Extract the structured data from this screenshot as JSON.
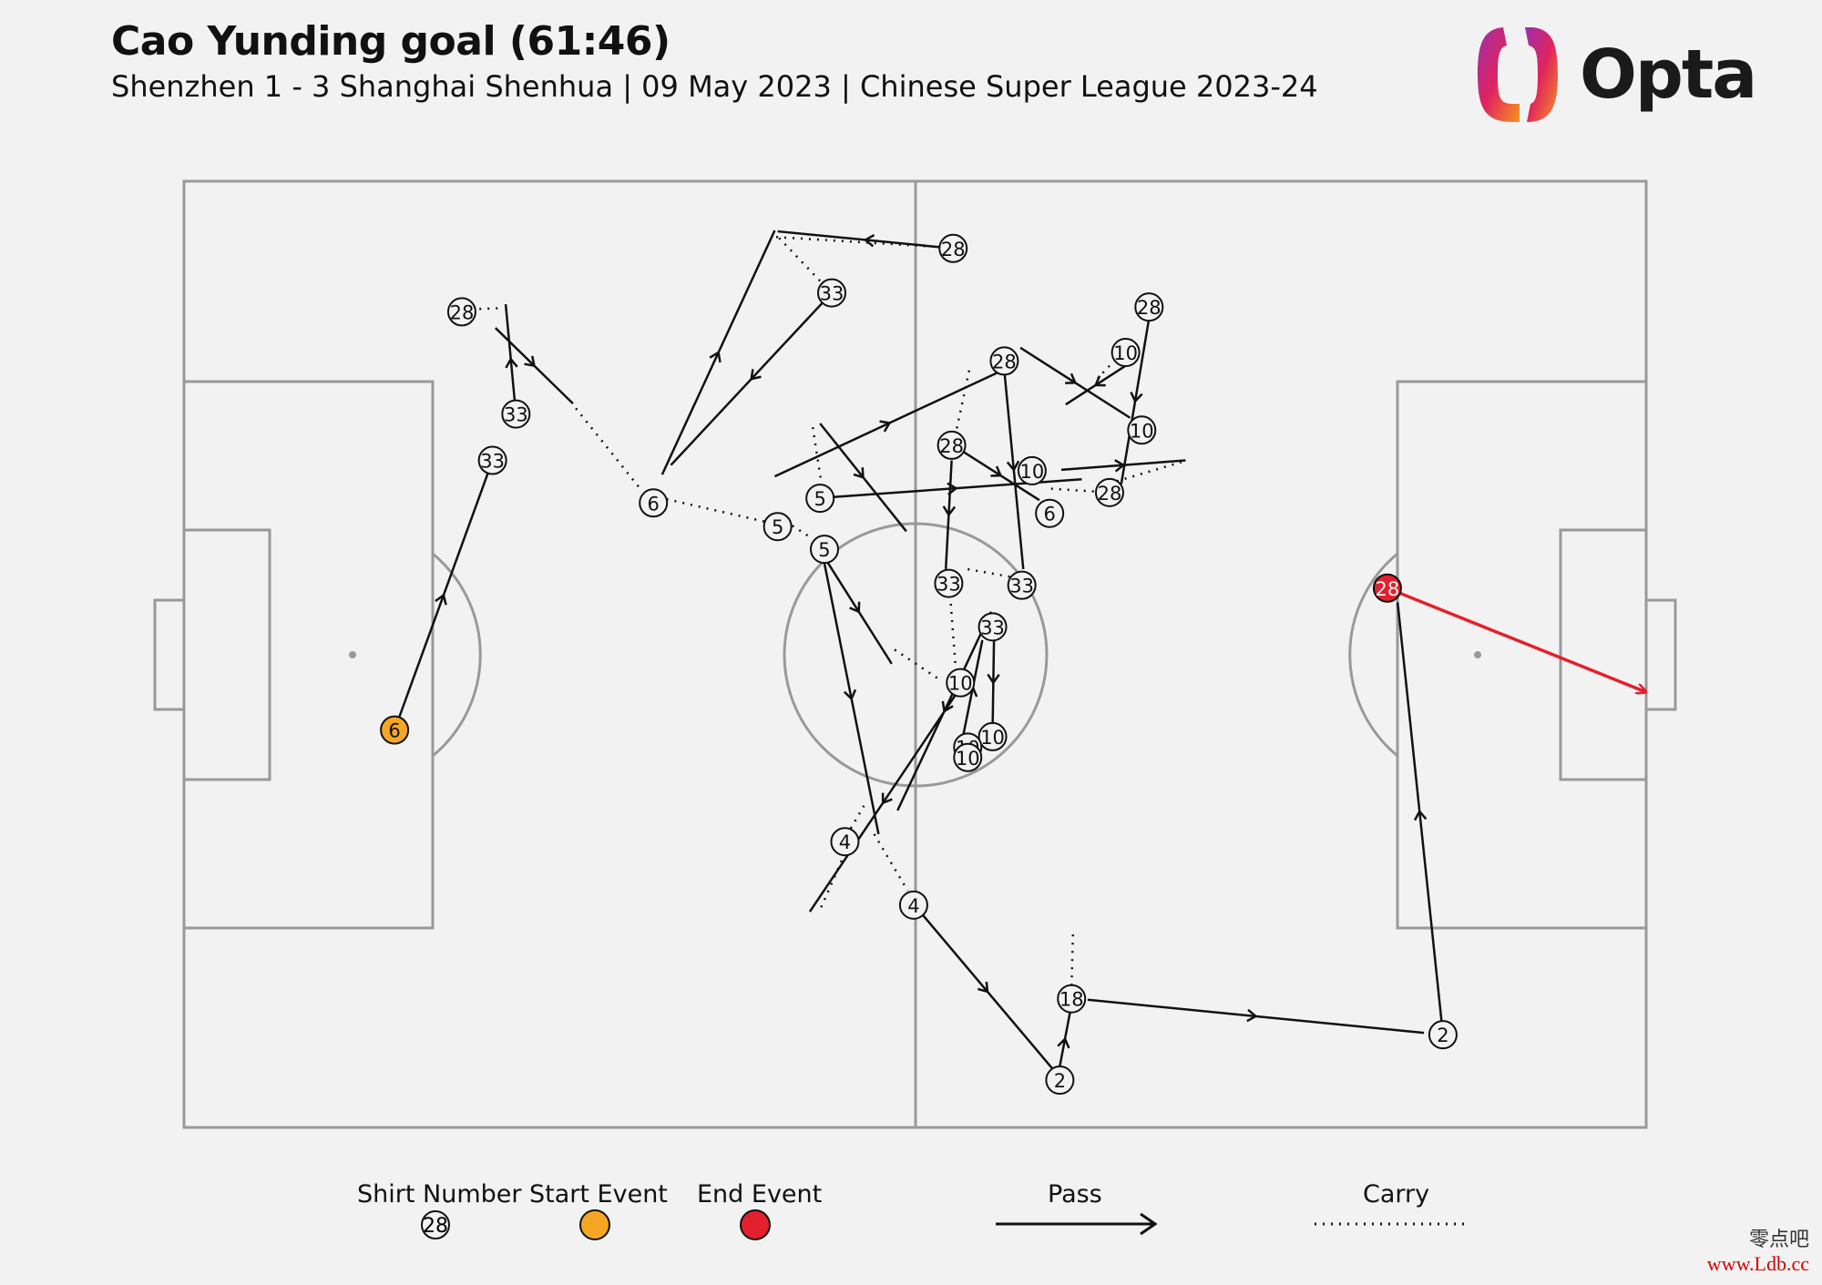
{
  "header": {
    "title": "Cao Yunding goal (61:46)",
    "subtitle": "Shenzhen 1 - 3 Shanghai Shenhua | 09 May 2023 | Chinese Super League 2023-24"
  },
  "logo": {
    "text": "Opta",
    "icon": "opta-logo-icon"
  },
  "colors": {
    "background": "#f2f2f2",
    "pitch_lines": "#999999",
    "start_event": "#f5a623",
    "end_event": "#e3202d",
    "pass": "#111111",
    "shot": "#e3202d"
  },
  "legend": {
    "shirt_number_label": "Shirt Number",
    "shirt_number_example": "28",
    "start_event_label": "Start Event",
    "end_event_label": "End Event",
    "pass_label": "Pass",
    "carry_label": "Carry"
  },
  "watermark": {
    "cn": "零点吧",
    "url": "www.Ldb.cc"
  },
  "chart_data": {
    "type": "pass-map",
    "pitch": {
      "length": 100,
      "width": 100
    },
    "nodes": [
      {
        "num": "6",
        "x": 14.4,
        "y": 58.0,
        "kind": "start"
      },
      {
        "num": "33",
        "x": 21.1,
        "y": 29.5
      },
      {
        "num": "33",
        "x": 22.7,
        "y": 24.6
      },
      {
        "num": "28",
        "x": 19.0,
        "y": 13.8
      },
      {
        "num": "6",
        "x": 32.1,
        "y": 34.0
      },
      {
        "num": "33",
        "x": 44.3,
        "y": 11.8
      },
      {
        "num": "28",
        "x": 52.6,
        "y": 7.1
      },
      {
        "num": "5",
        "x": 40.6,
        "y": 36.5
      },
      {
        "num": "5",
        "x": 43.5,
        "y": 33.5
      },
      {
        "num": "5",
        "x": 43.8,
        "y": 38.9
      },
      {
        "num": "28",
        "x": 52.5,
        "y": 27.9
      },
      {
        "num": "28",
        "x": 56.1,
        "y": 19.0
      },
      {
        "num": "28",
        "x": 66.0,
        "y": 13.3
      },
      {
        "num": "10",
        "x": 64.4,
        "y": 18.1
      },
      {
        "num": "10",
        "x": 65.5,
        "y": 26.3
      },
      {
        "num": "10",
        "x": 58.0,
        "y": 30.6
      },
      {
        "num": "6",
        "x": 59.2,
        "y": 35.1
      },
      {
        "num": "28",
        "x": 63.3,
        "y": 32.9
      },
      {
        "num": "33",
        "x": 52.3,
        "y": 42.5
      },
      {
        "num": "33",
        "x": 57.3,
        "y": 42.7
      },
      {
        "num": "33",
        "x": 55.3,
        "y": 47.1
      },
      {
        "num": "10",
        "x": 53.1,
        "y": 53.0
      },
      {
        "num": "10",
        "x": 55.3,
        "y": 58.7
      },
      {
        "num": "10",
        "x": 53.6,
        "y": 59.8
      },
      {
        "num": "10",
        "x": 53.6,
        "y": 60.9
      },
      {
        "num": "4",
        "x": 45.2,
        "y": 69.8
      },
      {
        "num": "4",
        "x": 49.9,
        "y": 76.5
      },
      {
        "num": "2",
        "x": 59.9,
        "y": 95.0
      },
      {
        "num": "18",
        "x": 60.7,
        "y": 86.4
      },
      {
        "num": "2",
        "x": 86.1,
        "y": 90.2
      },
      {
        "num": "28",
        "x": 82.3,
        "y": 43.0,
        "kind": "end"
      }
    ],
    "passes": [
      {
        "from": [
          14.4,
          58.0
        ],
        "to": [
          21.1,
          29.5
        ]
      },
      {
        "from": [
          22.7,
          24.6
        ],
        "to": [
          22.0,
          13.0
        ]
      },
      {
        "from": [
          21.3,
          15.5
        ],
        "to": [
          26.6,
          23.5
        ]
      },
      {
        "from": [
          44.3,
          11.8
        ],
        "to": [
          33.3,
          30.0
        ]
      },
      {
        "from": [
          32.7,
          31.0
        ],
        "to": [
          40.4,
          5.2
        ]
      },
      {
        "from": [
          52.6,
          7.1
        ],
        "to": [
          40.6,
          5.3
        ]
      },
      {
        "from": [
          40.4,
          31.2
        ],
        "to": [
          56.1,
          19.9
        ]
      },
      {
        "from": [
          44.2,
          33.4
        ],
        "to": [
          61.4,
          31.5
        ]
      },
      {
        "from": [
          43.5,
          25.6
        ],
        "to": [
          49.4,
          37.0
        ]
      },
      {
        "from": [
          43.8,
          40.4
        ],
        "to": [
          47.5,
          69.0
        ]
      },
      {
        "from": [
          43.9,
          40.0
        ],
        "to": [
          48.4,
          51.0
        ]
      },
      {
        "from": [
          52.5,
          29.5
        ],
        "to": [
          52.1,
          41.0
        ]
      },
      {
        "from": [
          56.1,
          20.0
        ],
        "to": [
          57.4,
          41.0
        ]
      },
      {
        "from": [
          60.0,
          30.5
        ],
        "to": [
          68.5,
          29.5
        ]
      },
      {
        "from": [
          64.4,
          19.5
        ],
        "to": [
          60.3,
          23.6
        ]
      },
      {
        "from": [
          66.0,
          14.5
        ],
        "to": [
          64.1,
          32.0
        ]
      },
      {
        "from": [
          57.2,
          17.6
        ],
        "to": [
          64.7,
          25.0
        ]
      },
      {
        "from": [
          53.2,
          28.5
        ],
        "to": [
          58.5,
          33.7
        ]
      },
      {
        "from": [
          52.8,
          54.2
        ],
        "to": [
          42.8,
          77.2
        ]
      },
      {
        "from": [
          55.2,
          45.5
        ],
        "to": [
          48.8,
          66.5
        ]
      },
      {
        "from": [
          55.4,
          48.0
        ],
        "to": [
          55.3,
          58.0
        ]
      },
      {
        "from": [
          53.3,
          58.5
        ],
        "to": [
          54.6,
          48.5
        ]
      },
      {
        "from": [
          50.5,
          77.5
        ],
        "to": [
          59.4,
          93.8
        ]
      },
      {
        "from": [
          59.9,
          93.5
        ],
        "to": [
          60.6,
          87.8
        ]
      },
      {
        "from": [
          61.8,
          86.5
        ],
        "to": [
          84.8,
          90.0
        ]
      },
      {
        "from": [
          86.0,
          88.7
        ],
        "to": [
          83.0,
          44.5
        ]
      }
    ],
    "carries": [
      {
        "from": [
          20.2,
          13.5
        ],
        "to": [
          21.8,
          13.4
        ]
      },
      {
        "from": [
          26.8,
          24.0
        ],
        "to": [
          31.2,
          32.5
        ]
      },
      {
        "from": [
          33.0,
          33.6
        ],
        "to": [
          39.8,
          36.0
        ]
      },
      {
        "from": [
          40.5,
          5.9
        ],
        "to": [
          51.2,
          6.9
        ]
      },
      {
        "from": [
          40.7,
          6.0
        ],
        "to": [
          43.6,
          10.7
        ]
      },
      {
        "from": [
          43.0,
          26.0
        ],
        "to": [
          43.6,
          32.0
        ]
      },
      {
        "from": [
          41.6,
          36.4
        ],
        "to": [
          43.0,
          37.8
        ]
      },
      {
        "from": [
          48.6,
          49.5
        ],
        "to": [
          51.8,
          52.8
        ]
      },
      {
        "from": [
          53.7,
          20.0
        ],
        "to": [
          52.8,
          26.5
        ]
      },
      {
        "from": [
          59.3,
          32.5
        ],
        "to": [
          62.4,
          32.8
        ]
      },
      {
        "from": [
          63.8,
          31.7
        ],
        "to": [
          68.6,
          29.5
        ]
      },
      {
        "from": [
          63.3,
          19.5
        ],
        "to": [
          62.5,
          20.8
        ]
      },
      {
        "from": [
          53.6,
          41.0
        ],
        "to": [
          56.5,
          41.8
        ]
      },
      {
        "from": [
          52.4,
          43.8
        ],
        "to": [
          52.8,
          52.0
        ]
      },
      {
        "from": [
          45.2,
          71.0
        ],
        "to": [
          43.5,
          77.0
        ]
      },
      {
        "from": [
          45.6,
          68.4
        ],
        "to": [
          46.5,
          66.0
        ]
      },
      {
        "from": [
          47.2,
          69.0
        ],
        "to": [
          49.5,
          75.0
        ]
      },
      {
        "from": [
          60.7,
          85.0
        ],
        "to": [
          60.8,
          79.5
        ]
      }
    ],
    "shot": {
      "from": [
        82.3,
        43.0
      ],
      "to": [
        100.0,
        54.0
      ]
    }
  }
}
